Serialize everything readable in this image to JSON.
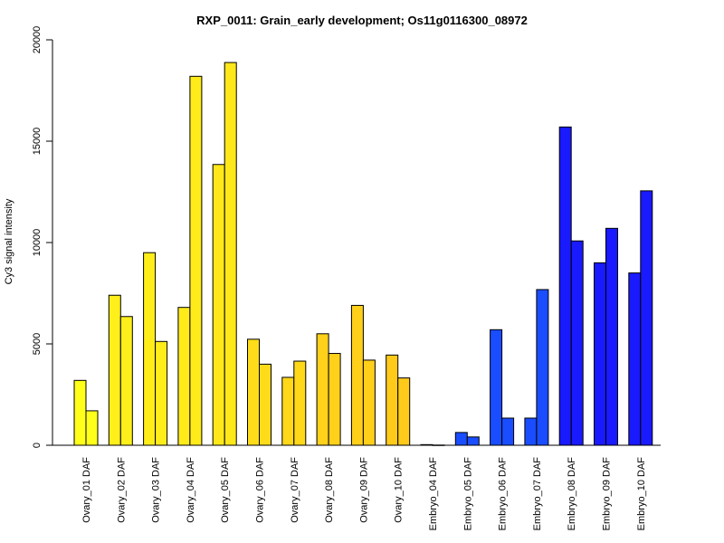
{
  "chart_data": {
    "type": "bar",
    "title": "RXP_0011: Grain_early development; Os11g0116300_08972",
    "ylabel": "Cy3 signal intensity",
    "xlabel": "",
    "ylim": [
      0,
      20000
    ],
    "yticks": [
      0,
      5000,
      10000,
      15000,
      20000
    ],
    "grid": false,
    "categories": [
      "Ovary_01 DAF",
      "Ovary_02 DAF",
      "Ovary_03 DAF",
      "Ovary_04 DAF",
      "Ovary_05 DAF",
      "Ovary_06 DAF",
      "Ovary_07 DAF",
      "Ovary_08 DAF",
      "Ovary_09 DAF",
      "Ovary_10 DAF",
      "Embryo_04 DAF",
      "Embryo_05 DAF",
      "Embryo_06 DAF",
      "Embryo_07 DAF",
      "Embryo_08 DAF",
      "Embryo_09 DAF",
      "Embryo_10 DAF"
    ],
    "colors": [
      "#ffff1a",
      "#ffef1a",
      "#ffed1a",
      "#ffeb1a",
      "#ffe81a",
      "#ffdc1a",
      "#ffd81a",
      "#ffd11a",
      "#ffcf1a",
      "#ffca1a",
      "#1a1aff",
      "#1a4dff",
      "#1a4dff",
      "#1a4dff",
      "#1a1aff",
      "#1a1aff",
      "#1a1aff"
    ],
    "series": [
      {
        "values": [
          3200,
          7400,
          9500,
          6800,
          13850,
          5230,
          3350,
          5500,
          6900,
          4450,
          30,
          630,
          5700,
          1340,
          15700,
          9000,
          8500
        ]
      },
      {
        "values": [
          1700,
          6350,
          5120,
          18200,
          18880,
          4000,
          4150,
          4530,
          4200,
          3320,
          10,
          410,
          1340,
          7680,
          10080,
          10700,
          12550
        ]
      }
    ]
  }
}
